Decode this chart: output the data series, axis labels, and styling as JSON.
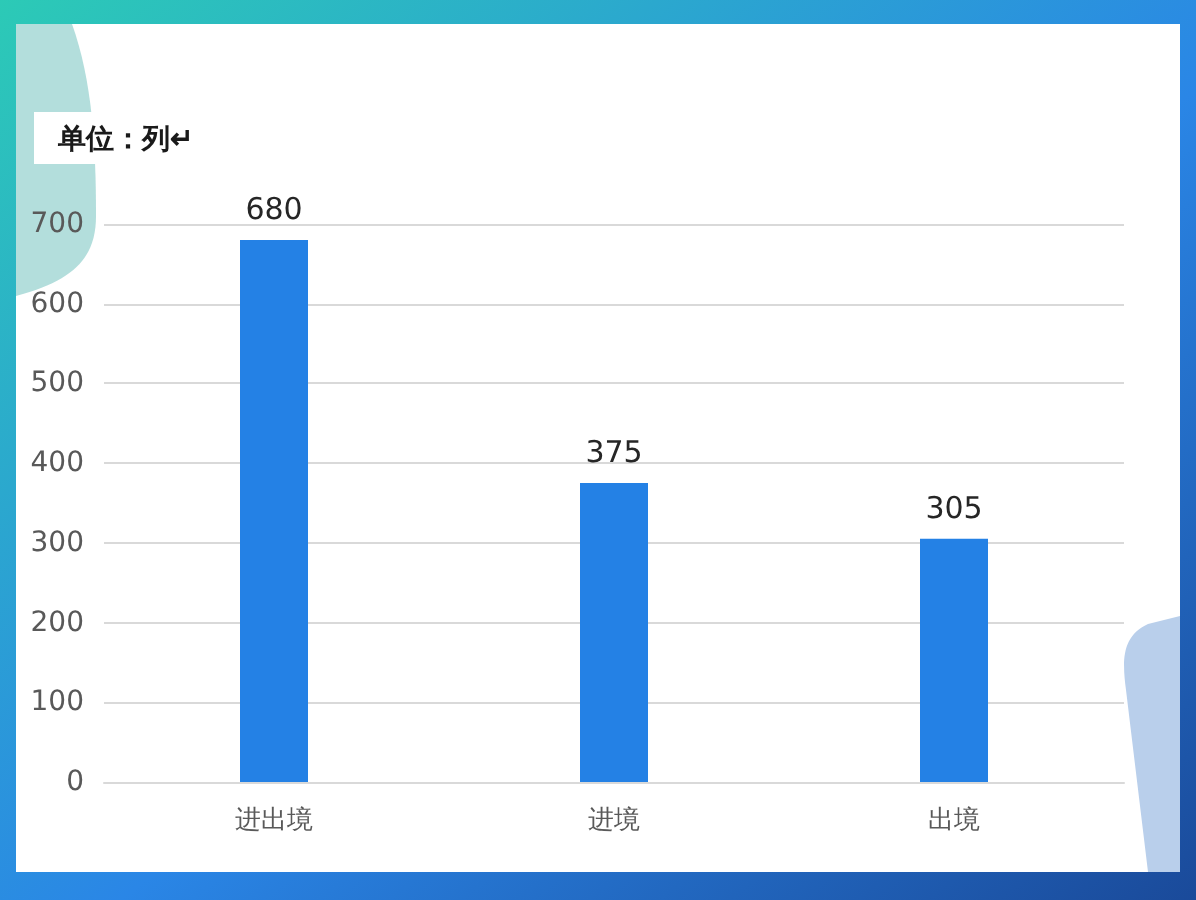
{
  "chart_data": {
    "type": "bar",
    "title": "单位：列↵",
    "categories": [
      "进出境",
      "进境",
      "出境"
    ],
    "values": [
      680,
      375,
      305
    ],
    "color": "#2481e5",
    "ylim": [
      0,
      700
    ],
    "yticks": [
      0,
      100,
      200,
      300,
      400,
      500,
      600,
      700
    ],
    "grid": "y",
    "data_labels": true
  }
}
